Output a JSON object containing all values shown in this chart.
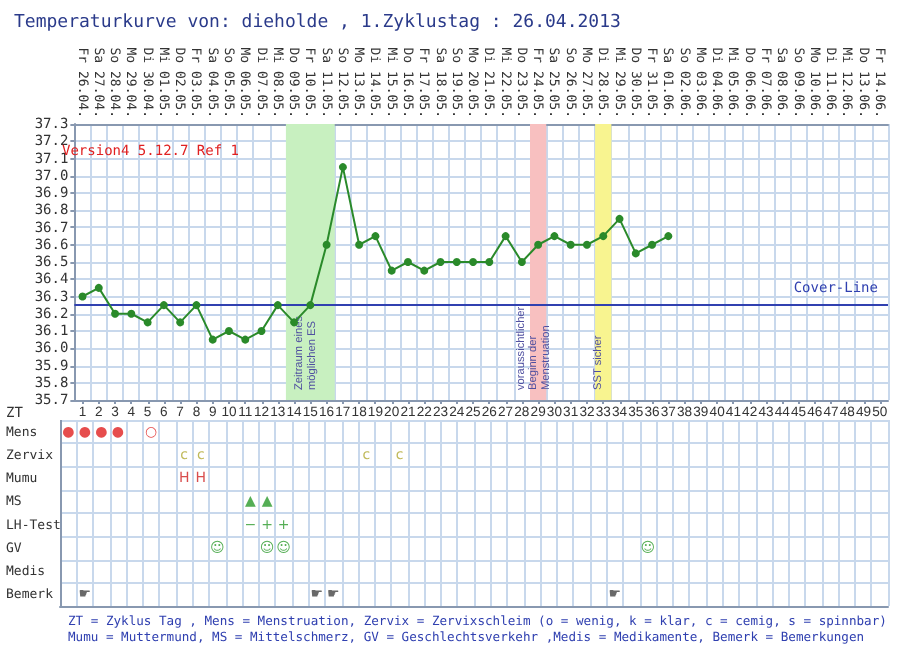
{
  "chart_data": [
    {
      "type": "line",
      "title": "Temperaturkurve von: dieholde , 1.Zyklustag : 26.04.2013",
      "x2label": "ZT",
      "annotations": [
        "Version4 5.12.7 Ref 1"
      ],
      "categories": [
        "Fr 26.04.",
        "Sa 27.04.",
        "So 28.04.",
        "Mo 29.04.",
        "Di 30.04.",
        "Mi 01.05.",
        "Do 02.05.",
        "Fr 03.05.",
        "Sa 04.05.",
        "So 05.05.",
        "Mo 06.05.",
        "Di 07.05.",
        "Mi 08.05.",
        "Do 09.05.",
        "Fr 10.05.",
        "Sa 11.05.",
        "So 12.05.",
        "Mo 13.05.",
        "Di 14.05.",
        "Mi 15.05.",
        "Do 16.05.",
        "Fr 17.05.",
        "Sa 18.05.",
        "So 19.05.",
        "Mo 20.05.",
        "Di 21.05.",
        "Mi 22.05.",
        "Do 23.05.",
        "Fr 24.05.",
        "Sa 25.05.",
        "So 26.05.",
        "Mo 27.05.",
        "Di 28.05.",
        "Mi 29.05.",
        "Do 30.05.",
        "Fr 31.05.",
        "Sa 01.06.",
        "So 02.06.",
        "Mo 03.06.",
        "Di 04.06.",
        "Mi 05.06.",
        "Do 06.06.",
        "Fr 07.06.",
        "Sa 08.06.",
        "So 09.06.",
        "Mo 10.06.",
        "Di 11.06.",
        "Mi 12.06.",
        "Do 13.06.",
        "Fr 14.06."
      ],
      "series": [
        {
          "color": "#2a8a2a",
          "values": [
            36.3,
            36.35,
            36.2,
            36.2,
            36.15,
            36.25,
            36.15,
            36.25,
            36.05,
            36.1,
            36.05,
            36.1,
            36.25,
            36.15,
            36.25,
            36.6,
            37.05,
            36.6,
            36.65,
            36.45,
            36.5,
            36.45,
            36.5,
            36.5,
            36.5,
            36.5,
            36.65,
            36.5,
            36.6,
            36.65,
            36.6,
            36.6,
            36.65,
            36.75,
            36.55,
            36.6,
            36.65,
            null,
            null,
            null,
            null,
            null,
            null,
            null,
            null,
            null,
            null,
            null,
            null,
            null
          ]
        }
      ],
      "x2lim": [
        0.5,
        50.5
      ],
      "x2ticks": [
        1,
        2,
        3,
        4,
        5,
        6,
        7,
        8,
        9,
        10,
        11,
        12,
        13,
        14,
        15,
        16,
        17,
        18,
        19,
        20,
        21,
        22,
        23,
        24,
        25,
        26,
        27,
        28,
        29,
        30,
        31,
        32,
        33,
        34,
        35,
        36,
        37,
        38,
        39,
        40,
        41,
        42,
        43,
        44,
        45,
        46,
        47,
        48,
        49,
        50
      ],
      "ylim": [
        35.7,
        37.3
      ],
      "yticks": [
        35.7,
        35.8,
        35.9,
        {
          "value": 36,
          "label": "36.0"
        },
        36.1,
        36.2,
        36.3,
        36.4,
        36.5,
        36.6,
        36.7,
        36.8,
        36.9,
        {
          "value": 37,
          "label": "37.0"
        },
        37.1,
        37.2,
        37.3
      ],
      "ref_lines": [
        {
          "axis": "y",
          "value": 36.25,
          "label": "Cover-Line",
          "color": "#3040b0"
        }
      ],
      "bands": [
        {
          "axis": "x2",
          "from": 13.5,
          "to": 16.5,
          "label": "Zeitraum eines möglichen ES",
          "color": "#c8f0c0"
        },
        {
          "axis": "x2",
          "from": 28.5,
          "to": 29.5,
          "label": "voraussichtlicher Beginn der Menstruation",
          "color": "#f8c0c0"
        },
        {
          "axis": "x2",
          "from": 32.5,
          "to": 33.5,
          "label": "SST sicher",
          "color": "#f8f490"
        }
      ],
      "grid": true,
      "marker": "circle"
    },
    {
      "type": "heatmap",
      "categories": [
        null,
        null,
        null,
        null,
        null,
        null,
        null,
        null,
        null,
        null,
        null,
        null,
        null,
        null,
        null,
        null,
        null,
        null,
        null,
        null,
        null,
        null,
        null,
        null,
        null,
        null,
        null,
        null,
        null,
        null,
        null,
        null,
        null,
        null,
        null,
        null,
        null,
        null,
        null,
        null,
        null,
        null,
        null,
        null,
        null,
        null,
        null,
        null,
        null,
        null
      ],
      "y_categories": [
        "Mens",
        "Zervix",
        "Mumu",
        "MS",
        "LH-Test",
        "GV",
        "Medis",
        "Bemerk"
      ],
      "cells": [
        [
          null,
          null,
          null,
          null,
          null,
          null,
          null,
          null,
          null,
          null,
          null,
          null,
          null,
          null,
          null,
          null,
          null,
          null,
          null,
          null,
          null,
          null,
          null,
          null,
          null,
          null,
          null,
          null,
          null,
          null,
          null,
          null,
          null,
          null,
          null,
          null,
          null,
          null,
          null,
          null,
          null,
          null,
          null,
          null,
          null,
          null,
          null,
          null,
          null,
          null
        ],
        [
          null,
          null,
          null,
          null,
          null,
          null,
          null,
          null,
          null,
          null,
          null,
          null,
          null,
          null,
          null,
          null,
          null,
          null,
          null,
          null,
          null,
          null,
          null,
          null,
          null,
          null,
          null,
          null,
          null,
          null,
          null,
          null,
          null,
          null,
          null,
          null,
          null,
          null,
          null,
          null,
          null,
          null,
          null,
          null,
          null,
          null,
          null,
          null,
          null,
          null
        ],
        [
          null,
          null,
          null,
          null,
          null,
          null,
          null,
          null,
          null,
          null,
          null,
          null,
          null,
          null,
          null,
          null,
          null,
          null,
          null,
          null,
          null,
          null,
          null,
          null,
          null,
          null,
          null,
          null,
          null,
          null,
          null,
          null,
          null,
          null,
          null,
          null,
          null,
          null,
          null,
          null,
          null,
          null,
          null,
          null,
          null,
          null,
          null,
          null,
          null,
          null
        ],
        [
          null,
          null,
          null,
          null,
          null,
          null,
          null,
          null,
          null,
          null,
          null,
          null,
          null,
          null,
          null,
          null,
          null,
          null,
          null,
          null,
          null,
          null,
          null,
          null,
          null,
          null,
          null,
          null,
          null,
          null,
          null,
          null,
          null,
          null,
          null,
          null,
          null,
          null,
          null,
          null,
          null,
          null,
          null,
          null,
          null,
          null,
          null,
          null,
          null,
          null
        ],
        [
          null,
          null,
          null,
          null,
          null,
          null,
          null,
          null,
          null,
          null,
          null,
          null,
          null,
          null,
          null,
          null,
          null,
          null,
          null,
          null,
          null,
          null,
          null,
          null,
          null,
          null,
          null,
          null,
          null,
          null,
          null,
          null,
          null,
          null,
          null,
          null,
          null,
          null,
          null,
          null,
          null,
          null,
          null,
          null,
          null,
          null,
          null,
          null,
          null,
          null
        ],
        [
          null,
          null,
          null,
          null,
          null,
          null,
          null,
          null,
          null,
          null,
          null,
          null,
          null,
          null,
          null,
          null,
          null,
          null,
          null,
          null,
          null,
          null,
          null,
          null,
          null,
          null,
          null,
          null,
          null,
          null,
          null,
          null,
          null,
          null,
          null,
          null,
          null,
          null,
          null,
          null,
          null,
          null,
          null,
          null,
          null,
          null,
          null,
          null,
          null,
          null
        ],
        [
          null,
          null,
          null,
          null,
          null,
          null,
          null,
          null,
          null,
          null,
          null,
          null,
          null,
          null,
          null,
          null,
          null,
          null,
          null,
          null,
          null,
          null,
          null,
          null,
          null,
          null,
          null,
          null,
          null,
          null,
          null,
          null,
          null,
          null,
          null,
          null,
          null,
          null,
          null,
          null,
          null,
          null,
          null,
          null,
          null,
          null,
          null,
          null,
          null,
          null
        ],
        [
          null,
          null,
          null,
          null,
          null,
          null,
          null,
          null,
          null,
          null,
          null,
          null,
          null,
          null,
          null,
          null,
          null,
          null,
          null,
          null,
          null,
          null,
          null,
          null,
          null,
          null,
          null,
          null,
          null,
          null,
          null,
          null,
          null,
          null,
          null,
          null,
          null,
          null,
          null,
          null,
          null,
          null,
          null,
          null,
          null,
          null,
          null,
          null,
          null,
          null
        ]
      ],
      "cell_labels": [
        [
          "●",
          "●",
          "●",
          "●",
          null,
          "○",
          null,
          null,
          null,
          null,
          null,
          null,
          null,
          null,
          null,
          null,
          null,
          null,
          null,
          null,
          null,
          null,
          null,
          null,
          null,
          null,
          null,
          null,
          null,
          null,
          null,
          null,
          null,
          null,
          null,
          null,
          null,
          null,
          null,
          null,
          null,
          null,
          null,
          null,
          null,
          null,
          null,
          null,
          null,
          null
        ],
        [
          null,
          null,
          null,
          null,
          null,
          null,
          null,
          "c",
          "c",
          null,
          null,
          null,
          null,
          null,
          null,
          null,
          null,
          null,
          "c",
          null,
          "c",
          null,
          null,
          null,
          null,
          null,
          null,
          null,
          null,
          null,
          null,
          null,
          null,
          null,
          null,
          null,
          null,
          null,
          null,
          null,
          null,
          null,
          null,
          null,
          null,
          null,
          null,
          null,
          null,
          null
        ],
        [
          null,
          null,
          null,
          null,
          null,
          null,
          null,
          "H",
          "H",
          null,
          null,
          null,
          null,
          null,
          null,
          null,
          null,
          null,
          null,
          null,
          null,
          null,
          null,
          null,
          null,
          null,
          null,
          null,
          null,
          null,
          null,
          null,
          null,
          null,
          null,
          null,
          null,
          null,
          null,
          null,
          null,
          null,
          null,
          null,
          null,
          null,
          null,
          null,
          null,
          null
        ],
        [
          null,
          null,
          null,
          null,
          null,
          null,
          null,
          null,
          null,
          null,
          null,
          "▲",
          "▲",
          null,
          null,
          null,
          null,
          null,
          null,
          null,
          null,
          null,
          null,
          null,
          null,
          null,
          null,
          null,
          null,
          null,
          null,
          null,
          null,
          null,
          null,
          null,
          null,
          null,
          null,
          null,
          null,
          null,
          null,
          null,
          null,
          null,
          null,
          null,
          null,
          null
        ],
        [
          null,
          null,
          null,
          null,
          null,
          null,
          null,
          null,
          null,
          null,
          null,
          "−",
          "+",
          "+",
          null,
          null,
          null,
          null,
          null,
          null,
          null,
          null,
          null,
          null,
          null,
          null,
          null,
          null,
          null,
          null,
          null,
          null,
          null,
          null,
          null,
          null,
          null,
          null,
          null,
          null,
          null,
          null,
          null,
          null,
          null,
          null,
          null,
          null,
          null,
          null
        ],
        [
          null,
          null,
          null,
          null,
          null,
          null,
          null,
          null,
          null,
          "☺",
          null,
          null,
          "☺",
          "☺",
          null,
          null,
          null,
          null,
          null,
          null,
          null,
          null,
          null,
          null,
          null,
          null,
          null,
          null,
          null,
          null,
          null,
          null,
          null,
          null,
          null,
          "☺",
          null,
          null,
          null,
          null,
          null,
          null,
          null,
          null,
          null,
          null,
          null,
          null,
          null,
          null
        ],
        [
          null,
          null,
          null,
          null,
          null,
          null,
          null,
          null,
          null,
          null,
          null,
          null,
          null,
          null,
          null,
          null,
          null,
          null,
          null,
          null,
          null,
          null,
          null,
          null,
          null,
          null,
          null,
          null,
          null,
          null,
          null,
          null,
          null,
          null,
          null,
          null,
          null,
          null,
          null,
          null,
          null,
          null,
          null,
          null,
          null,
          null,
          null,
          null,
          null,
          null
        ],
        [
          null,
          "☛",
          null,
          null,
          null,
          null,
          null,
          null,
          null,
          null,
          null,
          null,
          null,
          null,
          null,
          "☛",
          "☛",
          null,
          null,
          null,
          null,
          null,
          null,
          null,
          null,
          null,
          null,
          null,
          null,
          null,
          null,
          null,
          null,
          "☛",
          null,
          null,
          null,
          null,
          null,
          null,
          null,
          null,
          null,
          null,
          null,
          null,
          null,
          null,
          null,
          null
        ]
      ],
      "tick_labels": "y",
      "grid": true,
      "annotations": [
        "ZT = Zyklus Tag , Mens = Menstruation, Zervix = Zervixschleim (o = wenig, k = klar, c = cemig, s = spinnbar)",
        "Mumu = Muttermund, MS = Mittelschmerz, GV = Geschlechtsverkehr ,Medis = Medikamente, Bemerk = Bemerkungen"
      ]
    }
  ]
}
